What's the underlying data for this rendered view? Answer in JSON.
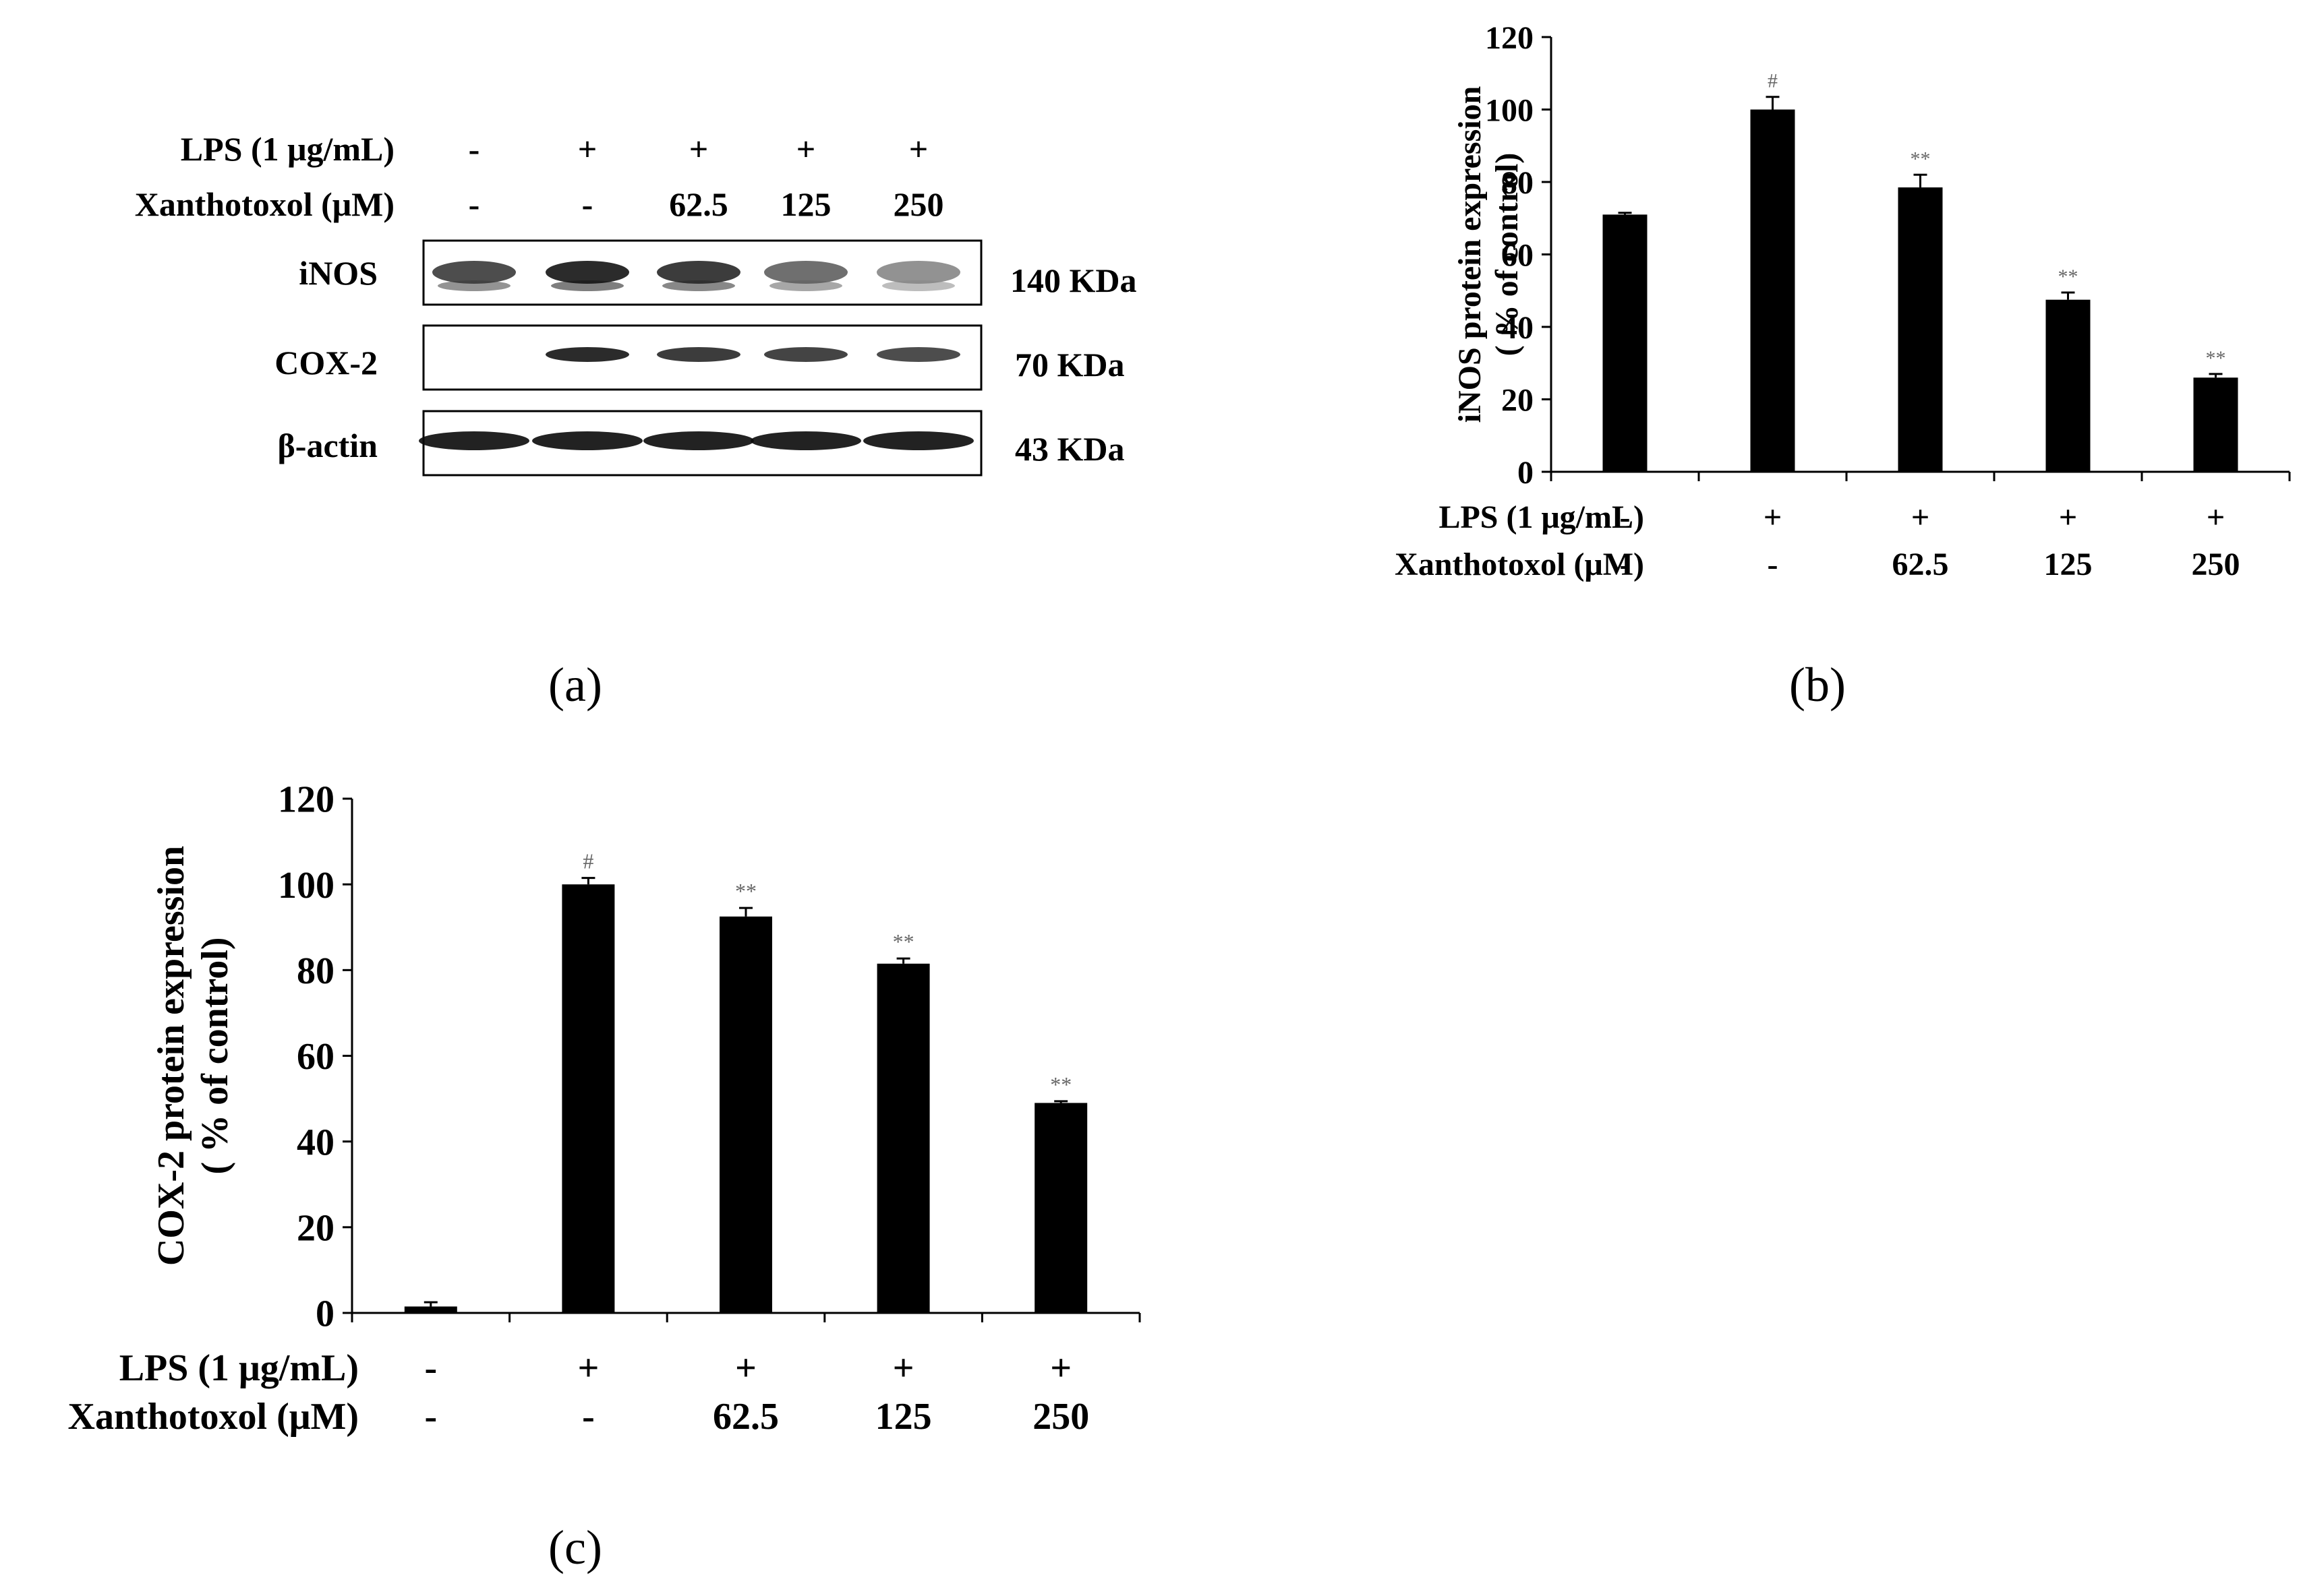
{
  "panel_a": {
    "label": "(a)",
    "row_headers": {
      "lps": "LPS (1 μg/mL)",
      "xan": "Xanthotoxol (μM)"
    },
    "lps_values": [
      "-",
      "+",
      "+",
      "+",
      "+"
    ],
    "xan_values": [
      "-",
      "-",
      "62.5",
      "125",
      "250"
    ],
    "blots": [
      {
        "name": "iNOS",
        "kda": "140 KDa",
        "intensity": [
          0.75,
          0.95,
          0.85,
          0.55,
          0.35
        ],
        "present": [
          true,
          true,
          true,
          true,
          true
        ]
      },
      {
        "name": "COX-2",
        "kda": "70 KDa",
        "intensity": [
          0.0,
          0.95,
          0.85,
          0.8,
          0.75
        ],
        "present": [
          false,
          true,
          true,
          true,
          true
        ]
      },
      {
        "name": "β-actin",
        "kda": "43 KDa",
        "intensity": [
          1.0,
          1.0,
          1.0,
          1.0,
          1.0
        ],
        "present": [
          true,
          true,
          true,
          true,
          true
        ]
      }
    ]
  },
  "chart_data": [
    {
      "type": "bar",
      "panel": "(b)",
      "ylabel_line1": "iNOS protein expression",
      "ylabel_line2": "( % of control)",
      "ylim": [
        0,
        120
      ],
      "yticks": [
        "0",
        "20",
        "40",
        "60",
        "80",
        "100",
        "120"
      ],
      "values": [
        71,
        100,
        78.5,
        47.5,
        26
      ],
      "errors": [
        0.5,
        3.5,
        3.5,
        2,
        1
      ],
      "significance": [
        "",
        "#",
        "**",
        "**",
        "**"
      ],
      "row_lps_label": "LPS (1 μg/mL)",
      "row_xan_label": "Xanthotoxol (μM)",
      "lps": [
        "-",
        "+",
        "+",
        "+",
        "+"
      ],
      "xanthotoxol": [
        "-",
        "-",
        "62.5",
        "125",
        "250"
      ]
    },
    {
      "type": "bar",
      "panel": "(c)",
      "ylabel_line1": "COX-2 protein expression",
      "ylabel_line2": "( % of control)",
      "ylim": [
        0,
        120
      ],
      "yticks": [
        "0",
        "20",
        "40",
        "60",
        "80",
        "100",
        "120"
      ],
      "values": [
        1.5,
        100,
        92.5,
        81.5,
        49
      ],
      "errors": [
        1,
        1.5,
        2,
        1.2,
        0.4
      ],
      "significance": [
        "",
        "#",
        "**",
        "**",
        "**"
      ],
      "row_lps_label": "LPS (1 μg/mL)",
      "row_xan_label": "Xanthotoxol (μM)",
      "lps": [
        "-",
        "+",
        "+",
        "+",
        "+"
      ],
      "xanthotoxol": [
        "-",
        "-",
        "62.5",
        "125",
        "250"
      ]
    }
  ]
}
